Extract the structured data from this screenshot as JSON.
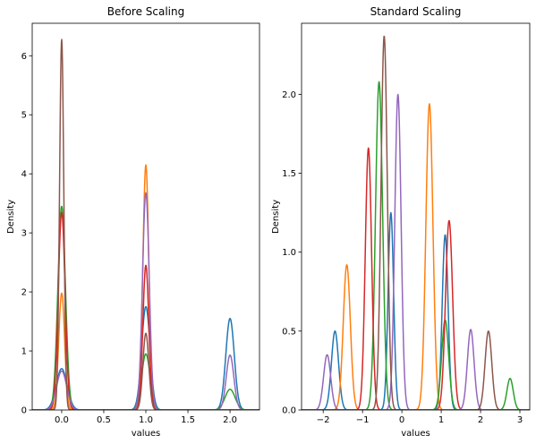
{
  "chart_data": [
    {
      "type": "line",
      "title": "Before Scaling",
      "xlabel": "values",
      "ylabel": "Density",
      "xlim": [
        -0.35,
        2.35
      ],
      "ylim": [
        0,
        6.55
      ],
      "xticks": [
        0.0,
        0.5,
        1.0,
        1.5,
        2.0
      ],
      "xtick_labels": [
        "0.0",
        "0.5",
        "1.0",
        "1.5",
        "2.0"
      ],
      "yticks": [
        0,
        1,
        2,
        3,
        4,
        5,
        6
      ],
      "ytick_labels": [
        "0",
        "1",
        "2",
        "3",
        "4",
        "5",
        "6"
      ],
      "grid": false,
      "series": [
        {
          "color": "#1f77b4",
          "peaks": [
            [
              0.0,
              0.7,
              0.065
            ],
            [
              1.0,
              1.75,
              0.05
            ],
            [
              2.0,
              1.55,
              0.05
            ]
          ]
        },
        {
          "color": "#ff7f0e",
          "peaks": [
            [
              0.0,
              1.98,
              0.035
            ],
            [
              1.0,
              4.15,
              0.035
            ]
          ]
        },
        {
          "color": "#2ca02c",
          "peaks": [
            [
              0.0,
              3.45,
              0.045
            ],
            [
              1.0,
              0.95,
              0.05
            ],
            [
              2.0,
              0.35,
              0.06
            ]
          ]
        },
        {
          "color": "#d62728",
          "peaks": [
            [
              0.0,
              3.35,
              0.04
            ],
            [
              1.0,
              2.45,
              0.035
            ]
          ]
        },
        {
          "color": "#9467bd",
          "peaks": [
            [
              0.0,
              0.66,
              0.06
            ],
            [
              1.0,
              3.68,
              0.04
            ],
            [
              2.0,
              0.93,
              0.045
            ]
          ]
        },
        {
          "color": "#8c564b",
          "peaks": [
            [
              0.0,
              6.28,
              0.025
            ],
            [
              1.0,
              1.3,
              0.035
            ]
          ]
        }
      ]
    },
    {
      "type": "line",
      "title": "Standard Scaling",
      "xlabel": "values",
      "ylabel": "Density",
      "xlim": [
        -2.55,
        3.25
      ],
      "ylim": [
        0,
        2.45
      ],
      "xticks": [
        -2,
        -1,
        0,
        1,
        2,
        3
      ],
      "xtick_labels": [
        "−2",
        "−1",
        "0",
        "1",
        "2",
        "3"
      ],
      "yticks": [
        0.0,
        0.5,
        1.0,
        1.5,
        2.0
      ],
      "ytick_labels": [
        "0.0",
        "0.5",
        "1.0",
        "1.5",
        "2.0"
      ],
      "grid": false,
      "series": [
        {
          "color": "#1f77b4",
          "peaks": [
            [
              -1.7,
              0.5,
              0.09
            ],
            [
              -0.28,
              1.25,
              0.07
            ],
            [
              1.1,
              1.11,
              0.075
            ]
          ]
        },
        {
          "color": "#ff7f0e",
          "peaks": [
            [
              -1.4,
              0.92,
              0.09
            ],
            [
              0.7,
              1.94,
              0.09
            ]
          ]
        },
        {
          "color": "#2ca02c",
          "peaks": [
            [
              -0.58,
              2.08,
              0.09
            ],
            [
              1.1,
              0.57,
              0.09
            ],
            [
              2.75,
              0.2,
              0.08
            ]
          ]
        },
        {
          "color": "#d62728",
          "peaks": [
            [
              -0.85,
              1.66,
              0.08
            ],
            [
              1.2,
              1.2,
              0.09
            ]
          ]
        },
        {
          "color": "#9467bd",
          "peaks": [
            [
              -1.9,
              0.35,
              0.09
            ],
            [
              -0.1,
              2.0,
              0.08
            ],
            [
              1.75,
              0.51,
              0.085
            ]
          ]
        },
        {
          "color": "#8c564b",
          "peaks": [
            [
              -0.45,
              2.37,
              0.08
            ],
            [
              2.2,
              0.5,
              0.085
            ]
          ]
        }
      ]
    }
  ]
}
